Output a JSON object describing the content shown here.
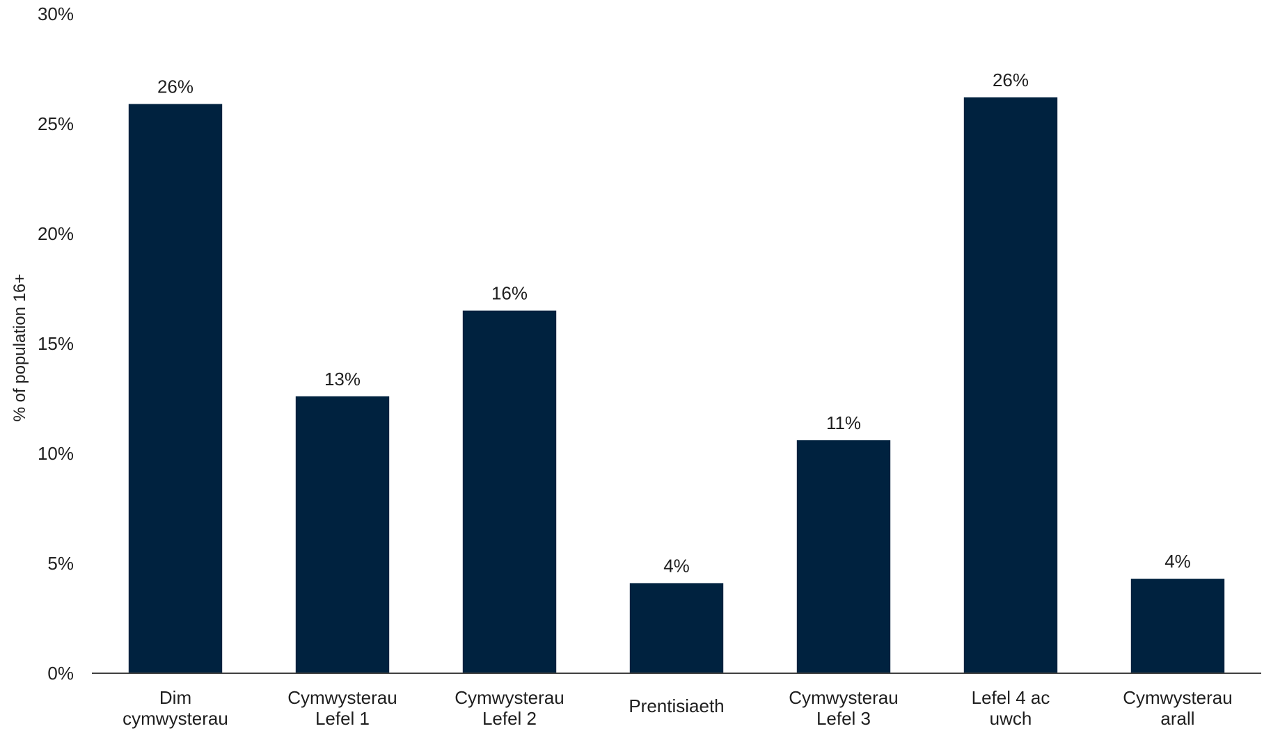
{
  "chart_data": {
    "type": "bar",
    "title": "",
    "xlabel": "",
    "ylabel": "% of population 16+",
    "ylim": [
      0,
      30
    ],
    "yticks": [
      "0%",
      "5%",
      "10%",
      "15%",
      "20%",
      "25%",
      "30%"
    ],
    "ytick_values": [
      0,
      5,
      10,
      15,
      20,
      25,
      30
    ],
    "grid": false,
    "legend": "none",
    "bar_color": "#00223f",
    "categories": [
      [
        "Dim",
        "cymwysterau"
      ],
      [
        "Cymwysterau",
        "Lefel 1"
      ],
      [
        "Cymwysterau",
        "Lefel 2"
      ],
      [
        "Prentisiaeth"
      ],
      [
        "Cymwysterau",
        "Lefel 3"
      ],
      [
        "Lefel 4 ac",
        "uwch"
      ],
      [
        "Cymwysterau",
        "arall"
      ]
    ],
    "values": [
      25.9,
      12.6,
      16.5,
      4.1,
      10.6,
      26.2,
      4.3
    ],
    "data_labels": [
      "26%",
      "13%",
      "16%",
      "4%",
      "11%",
      "26%",
      "4%"
    ]
  }
}
